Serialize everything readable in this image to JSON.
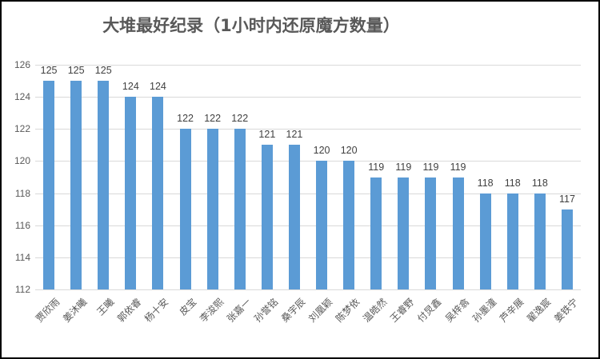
{
  "window": {
    "background": "#ffffff",
    "border_color": "#000000"
  },
  "chart_data": {
    "type": "bar",
    "title": "大堆最好纪录（1小时内还原魔方数量）",
    "categories": [
      "贾欣雨",
      "姜沐曦",
      "王曦",
      "郭依睿",
      "杨十安",
      "皮宝",
      "李浚熙",
      "张嘉一",
      "孙誉铭",
      "桑宇辰",
      "刘凰颖",
      "陈梦依",
      "温皓然",
      "王睿野",
      "付炅鑫",
      "吴梓翕",
      "孙墨潼",
      "芦辛展",
      "翟逸宸",
      "姜铁宁"
    ],
    "values": [
      125,
      125,
      125,
      124,
      124,
      122,
      122,
      122,
      121,
      121,
      120,
      120,
      119,
      119,
      119,
      119,
      118,
      118,
      118,
      117
    ],
    "xlabel": "",
    "ylabel": "",
    "ylim": [
      112,
      126
    ],
    "yticks": [
      112,
      114,
      116,
      118,
      120,
      122,
      124,
      126
    ],
    "grid": true,
    "data_labels": true,
    "legend": "none",
    "bar_color": "#5b9bd5",
    "gridline_color": "#d9d9d9",
    "axis_text_color": "#595959",
    "data_label_color": "#404040"
  }
}
